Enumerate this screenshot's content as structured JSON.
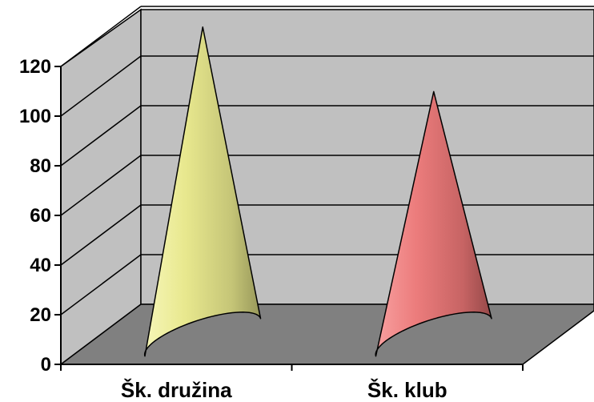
{
  "chart_data": {
    "type": "bar",
    "style": "3d-cone",
    "categories": [
      "Šk. družina",
      "Šk. klub"
    ],
    "values": [
      125,
      99
    ],
    "ylim": [
      0,
      120
    ],
    "yticks": [
      "0",
      "20",
      "40",
      "60",
      "80",
      "100",
      "120"
    ],
    "title": "",
    "xlabel": "",
    "ylabel": "",
    "grid": true,
    "legend": false,
    "colors": {
      "back_wall": "#c0c0c0",
      "side_wall": "#c0c0c0",
      "floor": "#808080",
      "cone_1": "#ffff99",
      "cone_2": "#ff8080"
    }
  }
}
